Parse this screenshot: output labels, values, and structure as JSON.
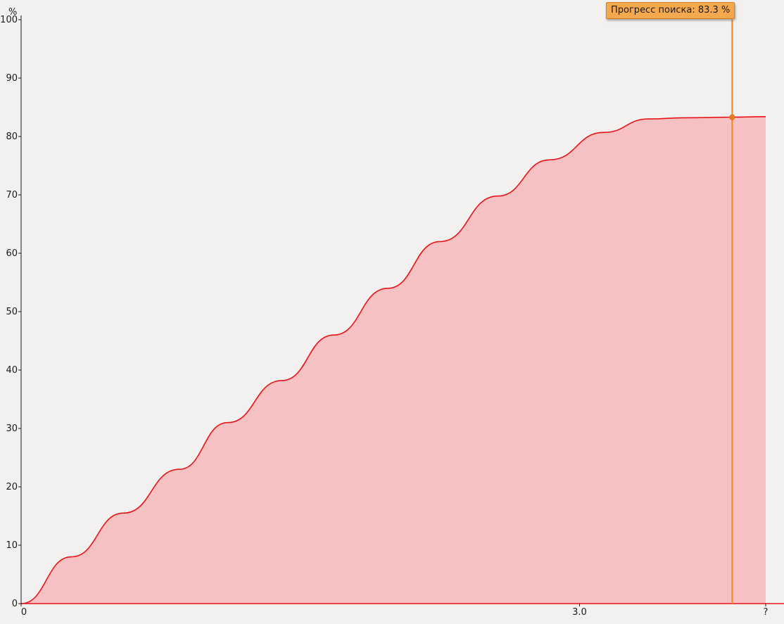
{
  "chart_data": {
    "type": "area",
    "y_unit_label": "%",
    "ylim": [
      0,
      100
    ],
    "y_ticks": [
      "0",
      "10",
      "20",
      "30",
      "40",
      "50",
      "60",
      "70",
      "80",
      "90",
      "100"
    ],
    "x_tick_labels": [
      "0",
      "3.0",
      "?"
    ],
    "x_tick_values": [
      0,
      3.0,
      4.0
    ],
    "xlim": [
      0,
      4.0
    ],
    "grid": false,
    "series": [
      {
        "x": [
          0,
          0.27,
          0.55,
          0.85,
          1.11,
          1.4,
          1.68,
          1.97,
          2.25,
          2.56,
          2.84,
          3.13,
          3.37,
          3.56,
          3.82,
          4.0
        ],
        "values": [
          0,
          8,
          15.5,
          23,
          31,
          38.2,
          46,
          54,
          62,
          69.8,
          76,
          80.7,
          83.0,
          83.2,
          83.3,
          83.4
        ],
        "color": "#e8141a",
        "fill": "#f5c1c2"
      }
    ],
    "cursor": {
      "x": 3.82,
      "value": 83.3,
      "label": "Прогресс поиска: 83.3 %",
      "color": "#f7811f"
    }
  }
}
